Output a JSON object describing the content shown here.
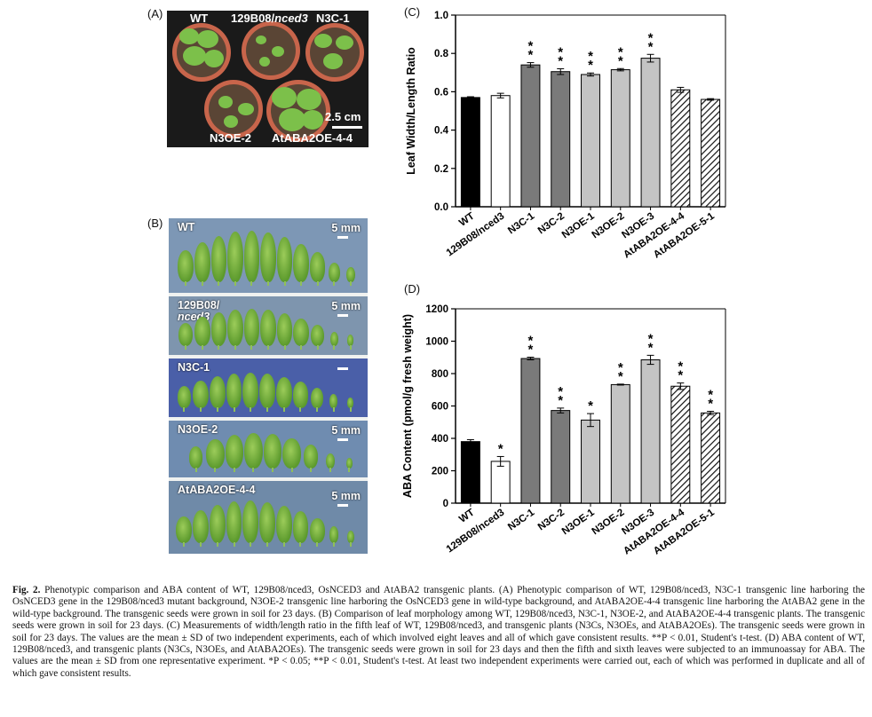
{
  "panels": {
    "a": "(A)",
    "b": "(B)",
    "c": "(C)",
    "d": "(D)"
  },
  "photo_a": {
    "labels": [
      "WT",
      "129B08/",
      "nced3",
      "N3C-1",
      "N3OE-2",
      "AtABA2OE-4-4"
    ],
    "scale": "2.5 cm"
  },
  "photo_b": {
    "strips": [
      {
        "label": "WT",
        "label2": ""
      },
      {
        "label": "129B08/",
        "label2": "nced3"
      },
      {
        "label": "N3C-1",
        "label2": ""
      },
      {
        "label": "N3OE-2",
        "label2": ""
      },
      {
        "label": "AtABA2OE-4-4",
        "label2": ""
      }
    ],
    "scale": "5 mm"
  },
  "chart_data": [
    {
      "type": "bar",
      "panel": "(C)",
      "ylabel": "Leaf Width/Length Ratio",
      "ylim": [
        0,
        1.0
      ],
      "yticks": [
        "0.0",
        "0.2",
        "0.4",
        "0.6",
        "0.8",
        "1.0"
      ],
      "categories": [
        "WT",
        "129B08/nced3",
        "N3C-1",
        "N3C-2",
        "N3OE-1",
        "N3OE-2",
        "N3OE-3",
        "AtABA2OE-4-4",
        "AtABA2OE-5-1"
      ],
      "values": [
        0.57,
        0.58,
        0.74,
        0.705,
        0.69,
        0.715,
        0.775,
        0.61,
        0.56
      ],
      "errors": [
        0.004,
        0.012,
        0.012,
        0.015,
        0.008,
        0.006,
        0.02,
        0.013,
        0.004
      ],
      "significance": [
        "",
        "",
        "**",
        "**",
        "**",
        "**",
        "**",
        "",
        ""
      ],
      "fills": [
        "solid-black",
        "white",
        "dark-gray",
        "dark-gray",
        "light-gray",
        "light-gray",
        "light-gray",
        "hatched",
        "hatched"
      ]
    },
    {
      "type": "bar",
      "panel": "(D)",
      "ylabel": "ABA Content (pmol/g fresh weight)",
      "ylim": [
        0,
        1200
      ],
      "yticks": [
        "0",
        "200",
        "400",
        "600",
        "800",
        "1000",
        "1200"
      ],
      "categories": [
        "WT",
        "129B08/nced3",
        "N3C-1",
        "N3C-2",
        "N3OE-1",
        "N3OE-2",
        "N3OE-3",
        "AtABA2OE-4-4",
        "AtABA2OE-5-1"
      ],
      "values": [
        380,
        258,
        893,
        572,
        513,
        732,
        885,
        722,
        557
      ],
      "errors": [
        12,
        30,
        8,
        15,
        40,
        3,
        28,
        20,
        10
      ],
      "significance": [
        "",
        "*",
        "**",
        "**",
        "*",
        "**",
        "**",
        "**",
        "**"
      ],
      "fills": [
        "solid-black",
        "white",
        "dark-gray",
        "dark-gray",
        "light-gray",
        "light-gray",
        "light-gray",
        "hatched",
        "hatched"
      ]
    }
  ],
  "caption": {
    "fig": "Fig. 2.",
    "text": "Phenotypic comparison and ABA content of WT, 129B08/nced3, OsNCED3 and AtABA2 transgenic plants. (A) Phenotypic comparison of WT, 129B08/nced3, N3C-1 transgenic line harboring the OsNCED3 gene in the 129B08/nced3 mutant background, N3OE-2 transgenic line harboring the OsNCED3 gene in wild-type background, and AtABA2OE-4-4 transgenic line harboring the AtABA2 gene in the wild-type background. The transgenic seeds were grown in soil for 23 days. (B) Comparison of leaf morphology among WT, 129B08/nced3, N3C-1, N3OE-2, and AtABA2OE-4-4 transgenic plants. The transgenic seeds were grown in soil for 23 days. (C) Measurements of width/length ratio in the fifth leaf of WT, 129B08/nced3, and transgenic plants (N3Cs, N3OEs, and AtABA2OEs). The transgenic seeds were grown in soil for 23 days. The values are the mean ± SD of two independent experiments, each of which involved eight leaves and all of which gave consistent results. **P < 0.01, Student's t-test. (D) ABA content of WT, 129B08/nced3, and transgenic plants (N3Cs, N3OEs, and AtABA2OEs). The transgenic seeds were grown in soil for 23 days and then the fifth and sixth leaves were subjected to an immunoassay for ABA. The values are the mean ± SD from one representative experiment. *P < 0.05; **P < 0.01, Student's t-test. At least two independent experiments were carried out, each of which was performed in duplicate and all of which gave consistent results."
  }
}
